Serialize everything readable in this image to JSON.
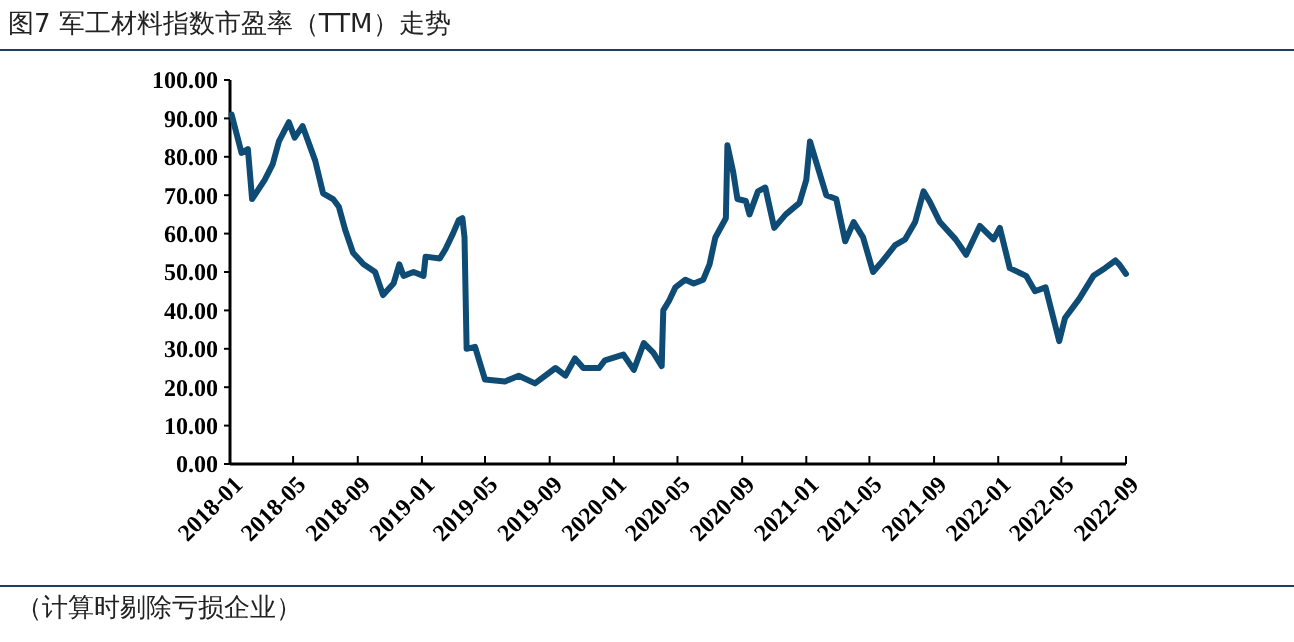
{
  "chart_data": {
    "type": "line",
    "title": "图7 军工材料指数市盈率（TTM）走势",
    "annotations": [
      "（计算时剔除亏损企业）"
    ],
    "x": [
      "2018-01-04",
      "2018-01-23",
      "2018-02-04",
      "2018-02-12",
      "2018-03-08",
      "2018-03-23",
      "2018-04-04",
      "2018-04-23",
      "2018-05-04",
      "2018-05-19",
      "2018-06-12",
      "2018-06-27",
      "2018-07-16",
      "2018-07-27",
      "2018-08-08",
      "2018-08-23",
      "2018-09-12",
      "2018-10-04",
      "2018-10-19",
      "2018-11-08",
      "2018-11-19",
      "2018-11-27",
      "2018-12-16",
      "2019-01-04",
      "2019-01-08",
      "2019-02-04",
      "2019-02-15",
      "2019-03-01",
      "2019-03-12",
      "2019-03-19",
      "2019-03-23",
      "2019-03-27",
      "2019-04-12",
      "2019-05-01",
      "2019-06-08",
      "2019-07-04",
      "2019-08-04",
      "2019-09-12",
      "2019-10-01",
      "2019-10-19",
      "2019-11-04",
      "2019-12-04",
      "2019-12-15",
      "2020-01-19",
      "2020-02-08",
      "2020-02-27",
      "2020-03-16",
      "2020-04-01",
      "2020-04-04",
      "2020-04-15",
      "2020-04-27",
      "2020-05-16",
      "2020-06-01",
      "2020-06-19",
      "2020-07-01",
      "2020-07-12",
      "2020-08-01",
      "2020-08-04",
      "2020-08-15",
      "2020-08-23",
      "2020-09-08",
      "2020-09-15",
      "2020-10-01",
      "2020-10-15",
      "2020-11-01",
      "2020-11-23",
      "2020-12-19",
      "2021-01-01",
      "2021-01-08",
      "2021-01-19",
      "2021-02-08",
      "2021-02-27",
      "2021-03-16",
      "2021-04-01",
      "2021-04-19",
      "2021-05-08",
      "2021-05-27",
      "2021-06-19",
      "2021-07-08",
      "2021-07-27",
      "2021-08-12",
      "2021-08-23",
      "2021-09-12",
      "2021-10-12",
      "2021-11-01",
      "2021-11-27",
      "2021-12-23",
      "2022-01-04",
      "2022-01-23",
      "2022-02-23",
      "2022-03-12",
      "2022-04-01",
      "2022-04-27",
      "2022-05-08",
      "2022-06-04",
      "2022-07-01",
      "2022-07-23",
      "2022-08-12",
      "2022-08-19",
      "2022-09-01"
    ],
    "series": [
      {
        "color": "#0f4c75",
        "values": [
          91,
          81,
          82,
          69,
          74,
          78,
          84,
          89,
          85,
          88,
          79,
          70.5,
          69,
          67,
          61,
          55,
          52,
          50,
          44,
          47,
          52,
          49,
          50,
          49,
          54,
          53.5,
          56,
          60,
          63.5,
          64,
          59,
          30,
          30.5,
          22,
          21.5,
          23,
          21,
          25,
          23,
          27.5,
          25,
          25,
          27,
          28.5,
          24.5,
          31.5,
          29,
          25.5,
          40,
          42.5,
          46,
          48,
          47,
          48,
          52,
          59,
          64,
          83,
          76,
          69,
          68.5,
          65,
          71,
          72,
          61.5,
          65,
          68,
          74,
          84,
          79,
          70,
          69,
          58,
          63,
          59,
          50,
          53,
          57,
          58.5,
          63,
          71,
          68.5,
          63,
          58.5,
          54.5,
          62,
          58.5,
          61.5,
          51,
          49,
          45,
          46,
          32,
          38,
          43,
          49,
          51,
          53,
          52,
          49.5
        ]
      }
    ],
    "xlim": [
      "2018-01-01",
      "2022-09-01"
    ],
    "xticks": [
      "2018-01",
      "2018-05",
      "2018-09",
      "2019-01",
      "2019-05",
      "2019-09",
      "2020-01",
      "2020-05",
      "2020-09",
      "2021-01",
      "2021-05",
      "2021-09",
      "2022-01",
      "2022-05",
      "2022-09"
    ],
    "ylim": [
      0,
      100
    ],
    "yticks": [
      {
        "value": 0,
        "label": "0.00"
      },
      {
        "value": 10,
        "label": "10.00"
      },
      {
        "value": 20,
        "label": "20.00"
      },
      {
        "value": 30,
        "label": "30.00"
      },
      {
        "value": 40,
        "label": "40.00"
      },
      {
        "value": 50,
        "label": "50.00"
      },
      {
        "value": 60,
        "label": "60.00"
      },
      {
        "value": 70,
        "label": "70.00"
      },
      {
        "value": 80,
        "label": "80.00"
      },
      {
        "value": 90,
        "label": "90.00"
      },
      {
        "value": 100,
        "label": "100.00"
      }
    ],
    "grid": false,
    "marker": "none",
    "line_style": "solid"
  }
}
